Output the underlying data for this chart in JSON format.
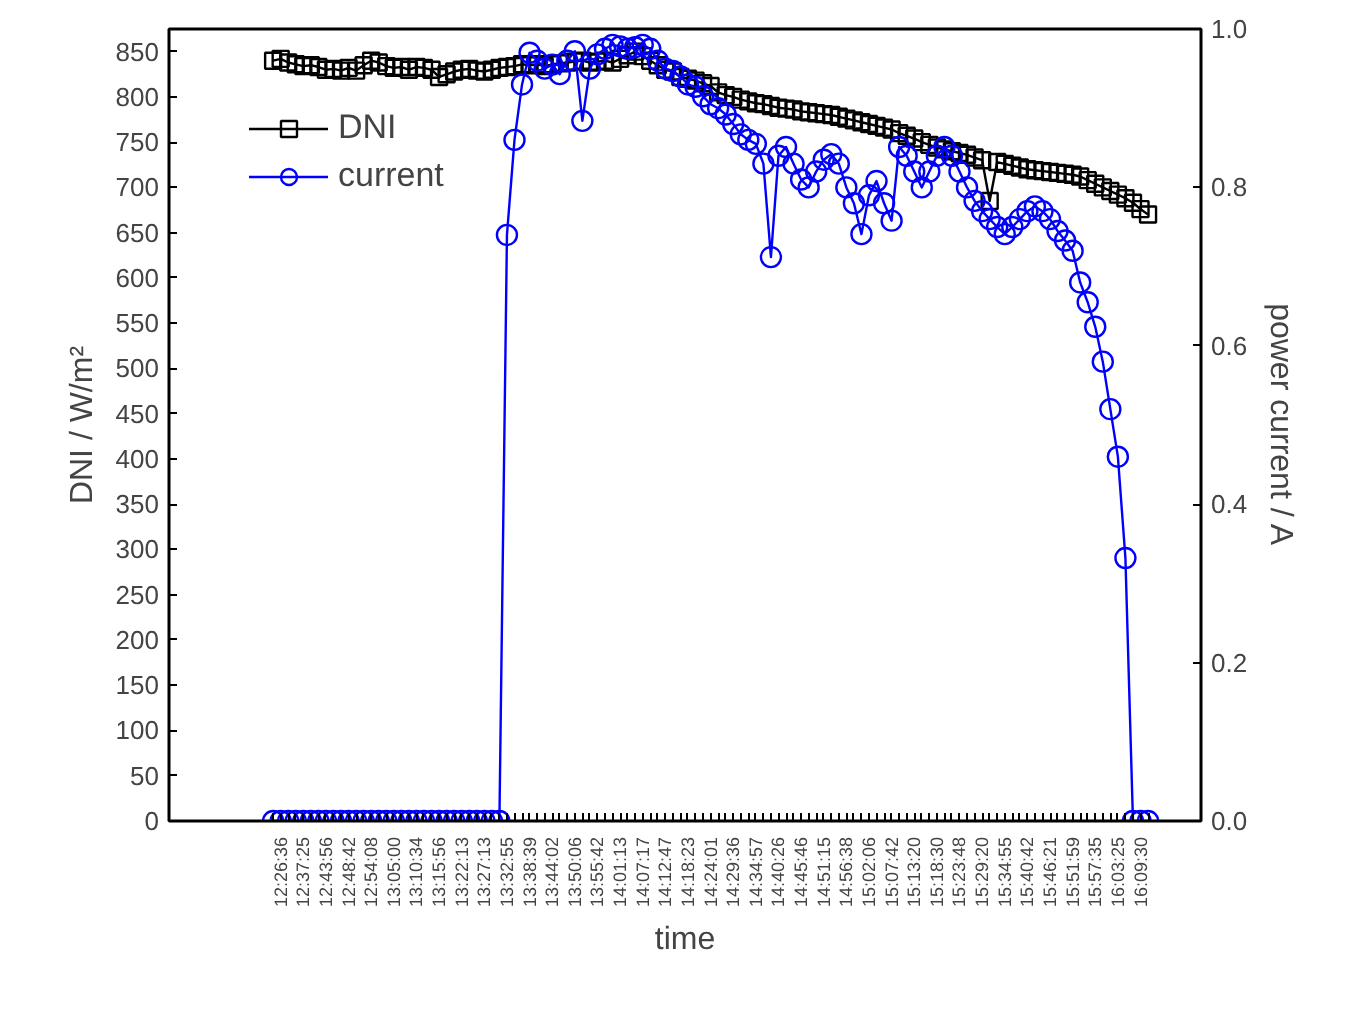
{
  "chart_data": {
    "type": "line",
    "xlabel": "time",
    "ylabel": "DNI / W/m²",
    "y2label": "power current / A",
    "categories": [
      null,
      "12:26:36",
      null,
      null,
      "12:37:25",
      null,
      null,
      "12:43:56",
      null,
      null,
      "12:48:42",
      null,
      null,
      "12:54:08",
      null,
      null,
      "13:05:00",
      null,
      null,
      "13:10:34",
      null,
      null,
      "13:15:56",
      null,
      null,
      "13:22:13",
      null,
      null,
      "13:27:13",
      null,
      null,
      "13:32:55",
      null,
      null,
      "13:38:39",
      null,
      null,
      "13:44:02",
      null,
      null,
      "13:50:06",
      null,
      null,
      "13:55:42",
      null,
      null,
      "14:01:13",
      null,
      null,
      "14:07:17",
      null,
      null,
      "14:12:47",
      null,
      null,
      "14:18:23",
      null,
      null,
      "14:24:01",
      null,
      null,
      "14:29:36",
      null,
      null,
      "14:34:57",
      null,
      null,
      "14:40:26",
      null,
      null,
      "14:45:46",
      null,
      null,
      "14:51:15",
      null,
      null,
      "14:56:38",
      null,
      null,
      "15:02:06",
      null,
      null,
      "15:07:42",
      null,
      null,
      "15:13:20",
      null,
      null,
      "15:18:30",
      null,
      null,
      "15:23:48",
      null,
      null,
      "15:29:20",
      null,
      null,
      "15:34:55",
      null,
      null,
      "15:40:42",
      null,
      null,
      "15:46:21",
      null,
      null,
      "15:51:59",
      null,
      null,
      "15:57:35",
      null,
      null,
      "16:03:25",
      null,
      null,
      "16:09:30",
      null
    ],
    "ylim": [
      0,
      875
    ],
    "yticks": [
      0,
      50,
      100,
      150,
      200,
      250,
      300,
      350,
      400,
      450,
      500,
      550,
      600,
      650,
      700,
      750,
      800,
      850
    ],
    "y2lim": [
      0,
      1.0
    ],
    "y2ticks": [
      {
        "value": 0,
        "label": "0.0"
      },
      {
        "value": 0.2,
        "label": "0.2"
      },
      {
        "value": 0.4,
        "label": "0.4"
      },
      {
        "value": 0.6,
        "label": "0.6"
      },
      {
        "value": 0.8,
        "label": "0.8"
      },
      {
        "value": 1.0,
        "label": "1.0"
      }
    ],
    "legend": "top left",
    "series": [
      {
        "name": "DNI",
        "color": "#000000",
        "marker": "square",
        "values": [
          840,
          842,
          838,
          836,
          834,
          835,
          833,
          830,
          831,
          829,
          832,
          829,
          835,
          840,
          838,
          834,
          832,
          833,
          830,
          833,
          832,
          830,
          822,
          825,
          828,
          830,
          831,
          829,
          828,
          830,
          832,
          833,
          834,
          836,
          835,
          836,
          834,
          836,
          837,
          838,
          839,
          840,
          838,
          839,
          840,
          838,
          842,
          846,
          850,
          845,
          840,
          835,
          830,
          828,
          822,
          820,
          818,
          815,
          812,
          805,
          802,
          800,
          797,
          795,
          793,
          792,
          790,
          788,
          787,
          786,
          784,
          783,
          782,
          781,
          780,
          778,
          776,
          774,
          772,
          770,
          768,
          766,
          764,
          760,
          757,
          754,
          750,
          747,
          744,
          742,
          740,
          738,
          736,
          733,
          730,
          685,
          728,
          726,
          724,
          722,
          720,
          719,
          718,
          717,
          716,
          715,
          714,
          712,
          708,
          704,
          700,
          696,
          692,
          688,
          683,
          676,
          670
        ]
      },
      {
        "name": "current",
        "color": "#0000ff",
        "marker": "circle",
        "axis": "y2",
        "values": [
          0,
          0,
          0,
          0,
          0,
          0,
          0,
          0,
          0,
          0,
          0,
          0,
          0,
          0,
          0,
          0,
          0,
          0,
          0,
          0,
          0,
          0,
          0,
          0,
          0,
          0,
          0,
          0,
          0,
          0,
          0,
          0.74,
          0.86,
          0.93,
          0.97,
          0.96,
          0.95,
          0.955,
          0.943,
          0.96,
          0.972,
          0.884,
          0.95,
          0.968,
          0.975,
          0.98,
          0.978,
          0.975,
          0.977,
          0.98,
          0.975,
          0.96,
          0.95,
          0.947,
          0.94,
          0.93,
          0.927,
          0.915,
          0.905,
          0.9,
          0.892,
          0.88,
          0.867,
          0.86,
          0.855,
          0.83,
          0.712,
          0.84,
          0.851,
          0.83,
          0.81,
          0.8,
          0.82,
          0.835,
          0.842,
          0.83,
          0.8,
          0.78,
          0.741,
          0.79,
          0.808,
          0.78,
          0.758,
          0.851,
          0.84,
          0.82,
          0.8,
          0.82,
          0.84,
          0.851,
          0.84,
          0.82,
          0.8,
          0.783,
          0.77,
          0.76,
          0.75,
          0.741,
          0.75,
          0.76,
          0.77,
          0.776,
          0.77,
          0.76,
          0.745,
          0.733,
          0.72,
          0.68,
          0.655,
          0.624,
          0.58,
          0.52,
          0.46,
          0.332,
          0,
          0,
          0
        ]
      }
    ]
  }
}
